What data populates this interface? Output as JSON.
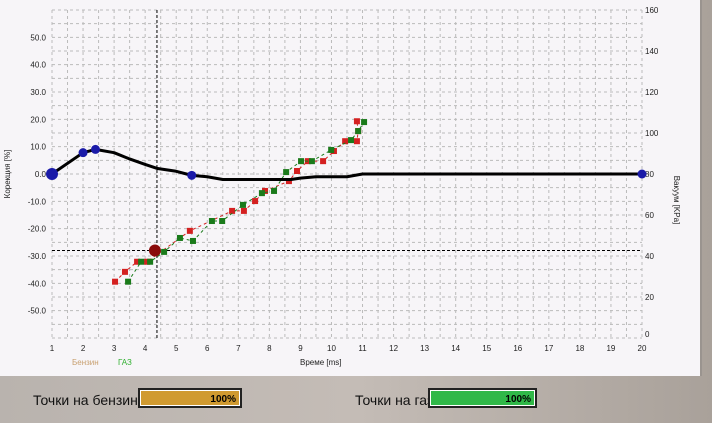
{
  "chart_data": {
    "type": "scatter",
    "xlabel": "Време [ms]",
    "ylabel": "Корекция [%]",
    "y2label": "Вакуум [KPa]",
    "xlim": [
      1,
      20
    ],
    "ylim": [
      -60,
      60
    ],
    "y2lim": [
      0,
      160
    ],
    "xticks": [
      1,
      2,
      3,
      4,
      5,
      6,
      7,
      8,
      9,
      10,
      11,
      12,
      13,
      14,
      15,
      16,
      17,
      18,
      19,
      20
    ],
    "yticks": [
      "50.0",
      "40.0",
      "30.0",
      "20.0",
      "10.0",
      "0.0",
      "-10.0",
      "-20.0",
      "-30.0",
      "-40.0",
      "-50.0"
    ],
    "y2ticks": [
      160,
      140,
      120,
      100,
      80,
      60,
      40,
      20,
      0
    ],
    "grid": true,
    "legend": [
      {
        "name": "Бензин",
        "color": "#c8a070"
      },
      {
        "name": "ГАЗ",
        "color": "#30b030"
      }
    ],
    "correction_curve": {
      "color": "#000000",
      "points": [
        [
          1,
          0
        ],
        [
          2,
          7.8
        ],
        [
          2.4,
          9
        ],
        [
          3,
          7.8
        ],
        [
          3.5,
          5.5
        ],
        [
          4,
          3.5
        ],
        [
          4.4,
          2
        ],
        [
          5,
          1
        ],
        [
          5.5,
          -0.5
        ],
        [
          6,
          -1
        ],
        [
          6.5,
          -2
        ],
        [
          7,
          -2
        ],
        [
          8,
          -2
        ],
        [
          8.7,
          -2
        ],
        [
          9,
          -1.5
        ],
        [
          9.5,
          -1
        ],
        [
          10.5,
          -1
        ],
        [
          11,
          0
        ],
        [
          20,
          0
        ]
      ],
      "markers": [
        [
          1,
          0
        ],
        [
          2,
          7.8
        ],
        [
          2.4,
          9
        ],
        [
          5.5,
          -0.5
        ],
        [
          20,
          0
        ]
      ],
      "marker_color": "#1a1aa8"
    },
    "series": [
      {
        "name": "Бензин",
        "color": "#d42020",
        "points": [
          [
            3.03,
            -39.4
          ],
          [
            3.35,
            -35.8
          ],
          [
            3.74,
            -32.1
          ],
          [
            4.06,
            -32.1
          ],
          [
            5.44,
            -20.8
          ],
          [
            6.8,
            -13.5
          ],
          [
            7.18,
            -13.5
          ],
          [
            7.54,
            -9.9
          ],
          [
            7.86,
            -6.2
          ],
          [
            8.63,
            -2.6
          ],
          [
            8.89,
            1.1
          ],
          [
            9.24,
            4.7
          ],
          [
            9.73,
            4.7
          ],
          [
            10.08,
            8.4
          ],
          [
            10.44,
            12
          ],
          [
            10.82,
            12
          ],
          [
            10.86,
            15.7
          ],
          [
            10.82,
            19.3
          ]
        ]
      },
      {
        "name": "ГАЗ",
        "color": "#1a7a1a",
        "points": [
          [
            3.45,
            -39.4
          ],
          [
            3.87,
            -32.1
          ],
          [
            4.16,
            -32.1
          ],
          [
            4.61,
            -28.5
          ],
          [
            5.12,
            -23.4
          ],
          [
            5.54,
            -24.5
          ],
          [
            6.15,
            -17.2
          ],
          [
            6.48,
            -17.2
          ],
          [
            7.15,
            -11.3
          ],
          [
            7.76,
            -7
          ],
          [
            8.15,
            -6.2
          ],
          [
            8.54,
            0.7
          ],
          [
            9.02,
            4.7
          ],
          [
            9.37,
            4.7
          ],
          [
            9.99,
            8.8
          ],
          [
            10.63,
            12.4
          ],
          [
            10.86,
            15.7
          ],
          [
            11.05,
            19
          ]
        ]
      }
    ],
    "cursor": {
      "x": 4.38,
      "y": -28,
      "color": "#8a0a0a"
    }
  },
  "footer": {
    "petrol_label": "Точки на бензин",
    "petrol_value": "100%",
    "petrol_percent": 100,
    "petrol_color": "#d09a30",
    "gas_label": "Точки на газ",
    "gas_value": "100%",
    "gas_percent": 100,
    "gas_color": "#30b848"
  }
}
